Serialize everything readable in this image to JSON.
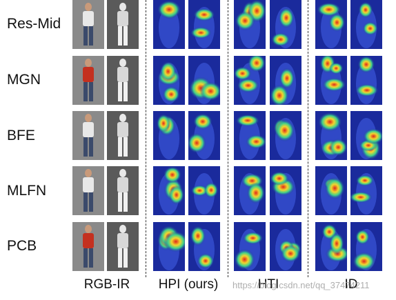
{
  "rows": [
    {
      "label": "Res-Mid"
    },
    {
      "label": "MGN"
    },
    {
      "label": "BFE"
    },
    {
      "label": "MLFN"
    },
    {
      "label": "PCB"
    }
  ],
  "columns": [
    {
      "label": "RGB-IR"
    },
    {
      "label": "HPI (ours)"
    },
    {
      "label": "HTI"
    },
    {
      "label": "ID"
    }
  ],
  "watermark": "https://blog.csdn.net/qq_37474211",
  "colors": {
    "rgb_photo": "#8a8a8a",
    "ir_photo": "#5a5a5a",
    "heat_background": "#1a2a9c",
    "heat_hot": "#e0261a",
    "heat_warm": "#f2d52e",
    "heat_mid": "#3fd08a"
  }
}
